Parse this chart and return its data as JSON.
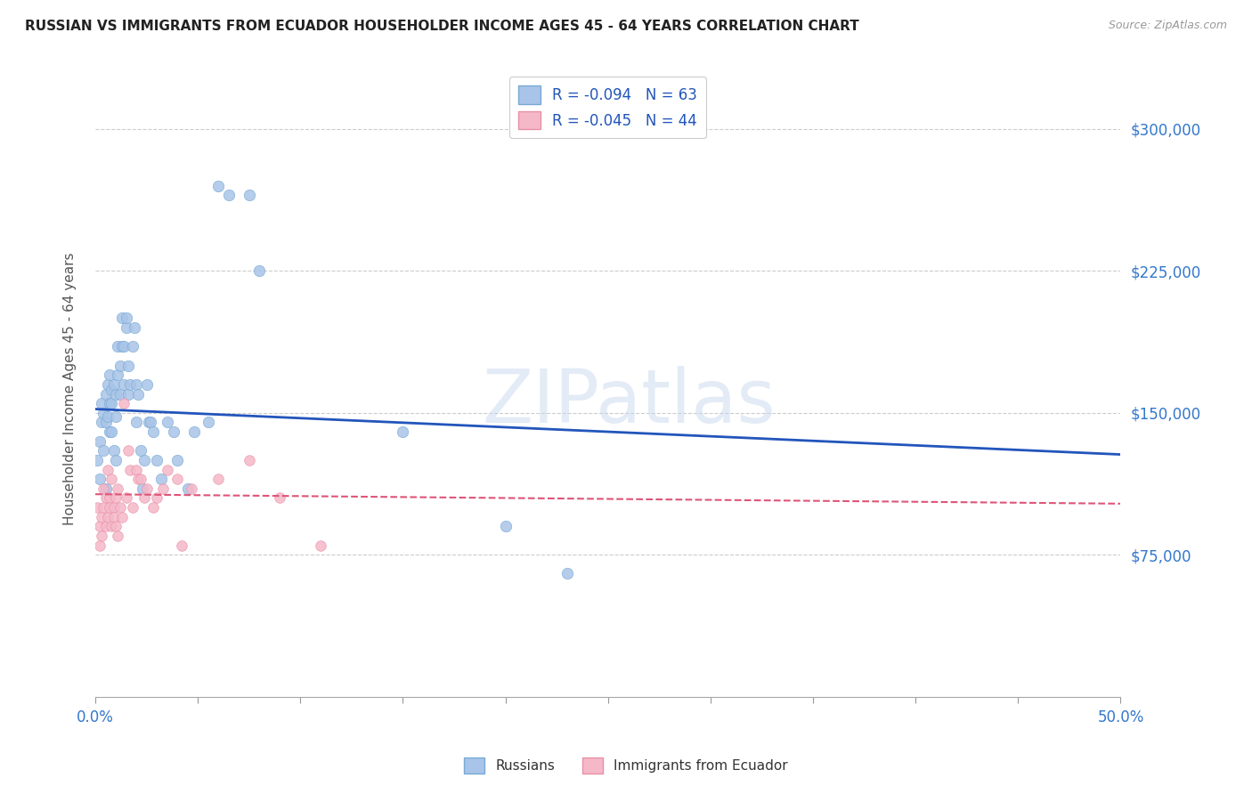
{
  "title": "RUSSIAN VS IMMIGRANTS FROM ECUADOR HOUSEHOLDER INCOME AGES 45 - 64 YEARS CORRELATION CHART",
  "source": "Source: ZipAtlas.com",
  "ylabel": "Householder Income Ages 45 - 64 years",
  "xlim": [
    0.0,
    0.5
  ],
  "ylim": [
    0,
    325000
  ],
  "yticks": [
    0,
    75000,
    150000,
    225000,
    300000
  ],
  "ytick_labels_right": [
    "",
    "$75,000",
    "$150,000",
    "$225,000",
    "$300,000"
  ],
  "xticks": [
    0.0,
    0.05,
    0.1,
    0.15,
    0.2,
    0.25,
    0.3,
    0.35,
    0.4,
    0.45,
    0.5
  ],
  "legend_blue_r": "R = -0.094",
  "legend_blue_n": "N = 63",
  "legend_pink_r": "R = -0.045",
  "legend_pink_n": "N = 44",
  "blue_color": "#a8c4e8",
  "blue_edge_color": "#7aaad4",
  "pink_color": "#f5b8c8",
  "pink_edge_color": "#e890a8",
  "blue_line_color": "#2255bb",
  "pink_line_color": "#dd5577",
  "watermark": "ZIPatlas",
  "russians_x": [
    0.001,
    0.002,
    0.002,
    0.003,
    0.003,
    0.004,
    0.004,
    0.005,
    0.005,
    0.005,
    0.006,
    0.006,
    0.007,
    0.007,
    0.007,
    0.008,
    0.008,
    0.008,
    0.009,
    0.009,
    0.01,
    0.01,
    0.01,
    0.011,
    0.011,
    0.012,
    0.012,
    0.013,
    0.013,
    0.014,
    0.014,
    0.015,
    0.015,
    0.016,
    0.016,
    0.017,
    0.018,
    0.019,
    0.02,
    0.02,
    0.021,
    0.022,
    0.023,
    0.024,
    0.025,
    0.026,
    0.027,
    0.028,
    0.03,
    0.032,
    0.035,
    0.038,
    0.04,
    0.045,
    0.048,
    0.055,
    0.06,
    0.065,
    0.075,
    0.08,
    0.15,
    0.2,
    0.23
  ],
  "russians_y": [
    125000,
    135000,
    115000,
    145000,
    155000,
    150000,
    130000,
    160000,
    145000,
    110000,
    165000,
    148000,
    170000,
    155000,
    140000,
    155000,
    162000,
    140000,
    130000,
    165000,
    160000,
    148000,
    125000,
    185000,
    170000,
    175000,
    160000,
    200000,
    185000,
    165000,
    185000,
    195000,
    200000,
    160000,
    175000,
    165000,
    185000,
    195000,
    165000,
    145000,
    160000,
    130000,
    110000,
    125000,
    165000,
    145000,
    145000,
    140000,
    125000,
    115000,
    145000,
    140000,
    125000,
    110000,
    140000,
    145000,
    270000,
    265000,
    265000,
    225000,
    140000,
    90000,
    65000
  ],
  "ecuador_x": [
    0.001,
    0.002,
    0.002,
    0.003,
    0.003,
    0.004,
    0.004,
    0.005,
    0.005,
    0.006,
    0.006,
    0.007,
    0.007,
    0.008,
    0.008,
    0.009,
    0.009,
    0.01,
    0.01,
    0.011,
    0.011,
    0.012,
    0.013,
    0.014,
    0.015,
    0.016,
    0.017,
    0.018,
    0.02,
    0.021,
    0.022,
    0.024,
    0.025,
    0.028,
    0.03,
    0.033,
    0.035,
    0.04,
    0.042,
    0.047,
    0.06,
    0.075,
    0.09,
    0.11
  ],
  "ecuador_y": [
    100000,
    90000,
    80000,
    85000,
    95000,
    100000,
    110000,
    90000,
    105000,
    95000,
    120000,
    105000,
    100000,
    115000,
    90000,
    100000,
    95000,
    105000,
    90000,
    110000,
    85000,
    100000,
    95000,
    155000,
    105000,
    130000,
    120000,
    100000,
    120000,
    115000,
    115000,
    105000,
    110000,
    100000,
    105000,
    110000,
    120000,
    115000,
    80000,
    110000,
    115000,
    125000,
    105000,
    80000
  ],
  "blue_regression_x0": 0.0,
  "blue_regression_y0": 152000,
  "blue_regression_x1": 0.5,
  "blue_regression_y1": 128000,
  "pink_regression_x0": 0.0,
  "pink_regression_y0": 107000,
  "pink_regression_x1": 0.5,
  "pink_regression_y1": 102000
}
